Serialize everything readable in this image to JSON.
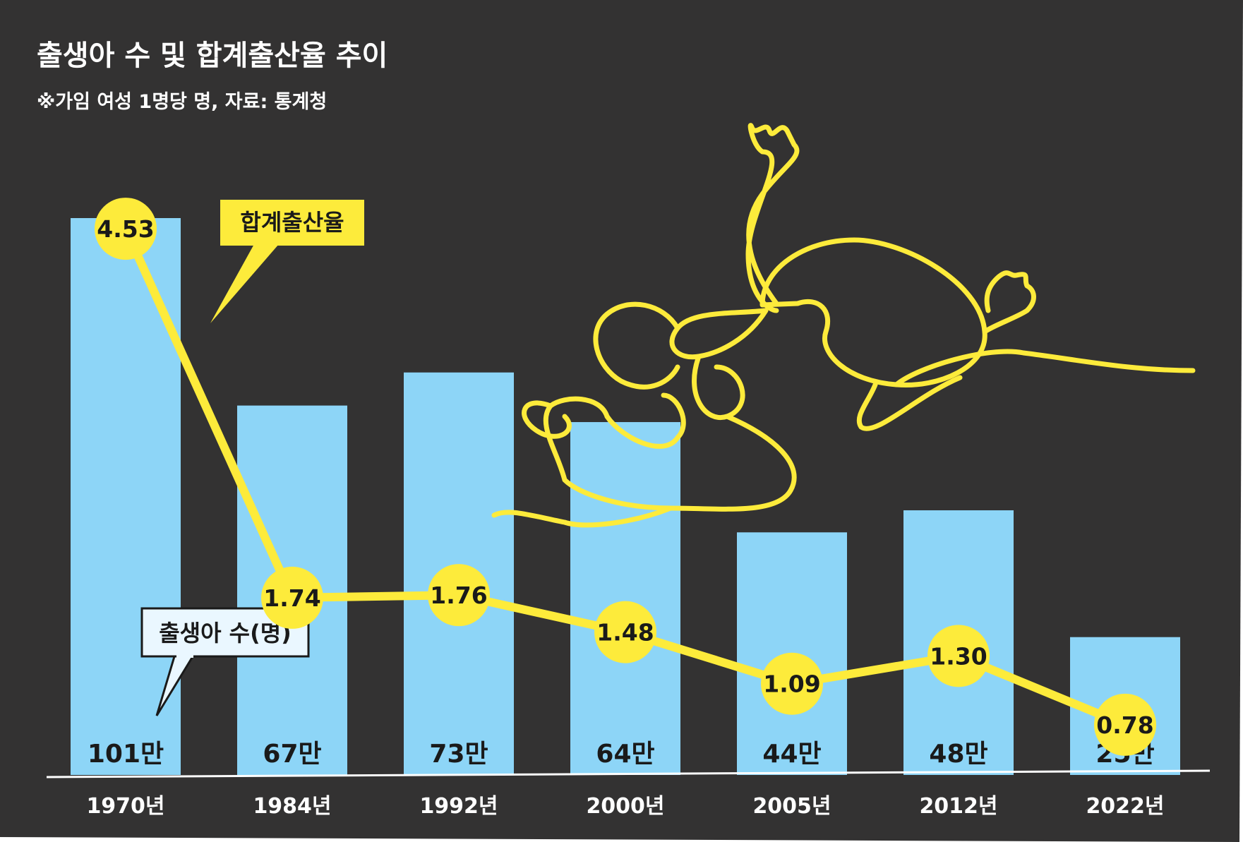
{
  "title": "출생아 수 및 합계출산율 추이",
  "subtitle": "※가임 여성 1명당 명, 자료: 통계청",
  "colors": {
    "background": "#333232",
    "bar": "#8dd5f7",
    "rate": "#fdeb3b",
    "text_dark": "#1a1a1a",
    "axis": "#ffffff"
  },
  "chart_data": {
    "type": "bar",
    "categories": [
      "1970년",
      "1984년",
      "1992년",
      "2000년",
      "2005년",
      "2012년",
      "2022년"
    ],
    "series": [
      {
        "name": "출생아 수(명)",
        "type": "bar",
        "values": [
          1010000,
          670000,
          730000,
          640000,
          440000,
          480000,
          250000
        ],
        "labels": [
          "101만",
          "67만",
          "73만",
          "64만",
          "44만",
          "48만",
          "25만"
        ]
      },
      {
        "name": "합계출산율",
        "type": "line",
        "values": [
          4.53,
          1.74,
          1.76,
          1.48,
          1.09,
          1.3,
          0.78
        ],
        "labels": [
          "4.53",
          "1.74",
          "1.76",
          "1.48",
          "1.09",
          "1.30",
          "0.78"
        ]
      }
    ],
    "legend": {
      "births": "출생아 수(명)",
      "rate": "합계출산율"
    },
    "grid": false
  }
}
